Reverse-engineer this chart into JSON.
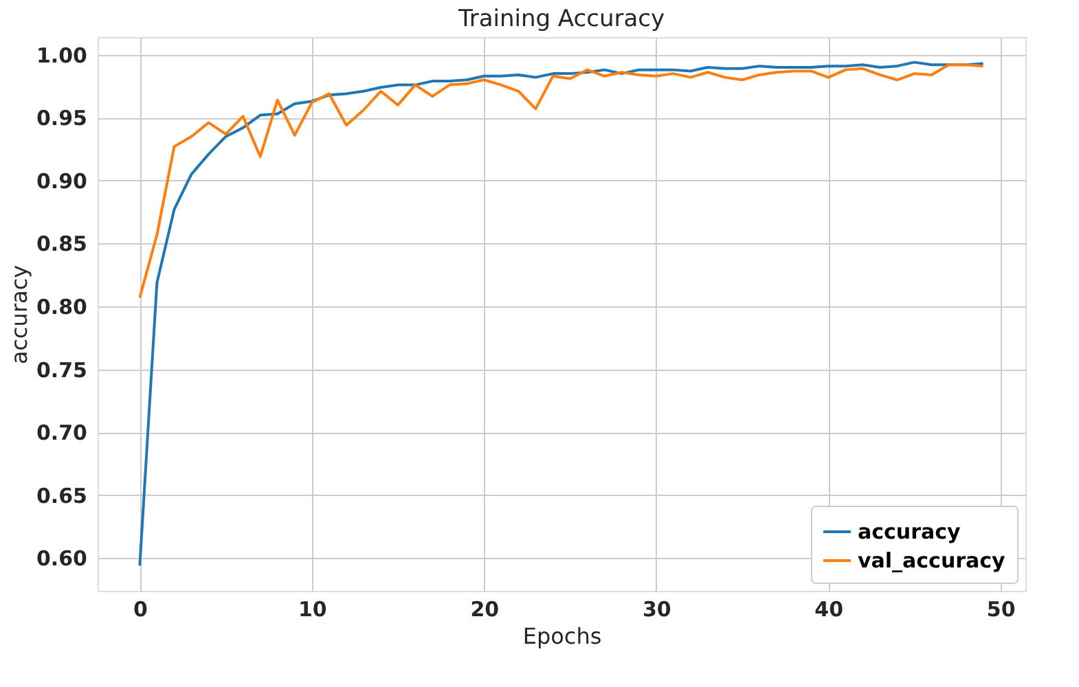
{
  "chart_data": {
    "type": "line",
    "title": "Training Accuracy",
    "xlabel": "Epochs",
    "ylabel": "accuracy",
    "x": [
      0,
      1,
      2,
      3,
      4,
      5,
      6,
      7,
      8,
      9,
      10,
      11,
      12,
      13,
      14,
      15,
      16,
      17,
      18,
      19,
      20,
      21,
      22,
      23,
      24,
      25,
      26,
      27,
      28,
      29,
      30,
      31,
      32,
      33,
      34,
      35,
      36,
      37,
      38,
      39,
      40,
      41,
      42,
      43,
      44,
      45,
      46,
      47,
      48,
      49
    ],
    "series": [
      {
        "name": "accuracy",
        "color": "#1f77b4",
        "values": [
          0.594,
          0.819,
          0.877,
          0.905,
          0.921,
          0.935,
          0.942,
          0.952,
          0.953,
          0.961,
          0.963,
          0.968,
          0.969,
          0.971,
          0.974,
          0.976,
          0.976,
          0.979,
          0.979,
          0.98,
          0.983,
          0.983,
          0.984,
          0.982,
          0.985,
          0.985,
          0.986,
          0.988,
          0.985,
          0.988,
          0.988,
          0.988,
          0.987,
          0.99,
          0.989,
          0.989,
          0.991,
          0.99,
          0.99,
          0.99,
          0.991,
          0.991,
          0.992,
          0.99,
          0.991,
          0.994,
          0.992,
          0.992,
          0.992,
          0.993
        ]
      },
      {
        "name": "val_accuracy",
        "color": "#ff7f0e",
        "values": [
          0.807,
          0.857,
          0.927,
          0.935,
          0.946,
          0.937,
          0.951,
          0.919,
          0.964,
          0.936,
          0.962,
          0.969,
          0.944,
          0.956,
          0.971,
          0.96,
          0.976,
          0.967,
          0.976,
          0.977,
          0.98,
          0.976,
          0.971,
          0.957,
          0.983,
          0.981,
          0.988,
          0.983,
          0.986,
          0.984,
          0.983,
          0.985,
          0.982,
          0.986,
          0.982,
          0.98,
          0.984,
          0.986,
          0.987,
          0.987,
          0.982,
          0.988,
          0.989,
          0.984,
          0.98,
          0.985,
          0.984,
          0.992,
          0.992,
          0.991
        ]
      }
    ],
    "xlim": [
      -2.45,
      51.45
    ],
    "xticks": [
      0,
      10,
      20,
      30,
      40,
      50
    ],
    "ylim": [
      0.574,
      1.014
    ],
    "yticks": [
      {
        "value": 0.6,
        "label": "0.60"
      },
      {
        "value": 0.65,
        "label": "0.65"
      },
      {
        "value": 0.7,
        "label": "0.70"
      },
      {
        "value": 0.75,
        "label": "0.75"
      },
      {
        "value": 0.8,
        "label": "0.80"
      },
      {
        "value": 0.85,
        "label": "0.85"
      },
      {
        "value": 0.9,
        "label": "0.90"
      },
      {
        "value": 0.95,
        "label": "0.95"
      },
      {
        "value": 1.0,
        "label": "1.00"
      }
    ],
    "grid": true,
    "legend": "bottom right",
    "marker": "none",
    "line_style": "solid"
  }
}
